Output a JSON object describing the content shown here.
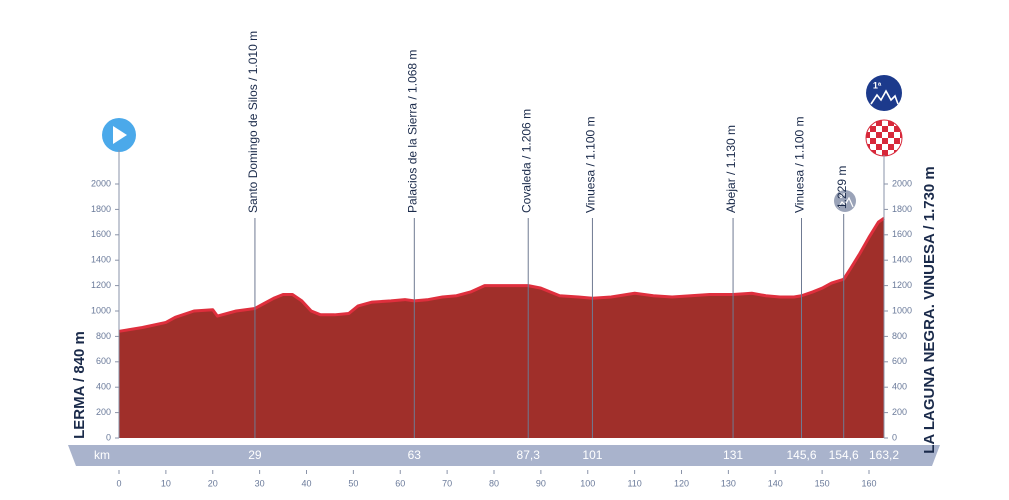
{
  "chart_data": {
    "type": "area",
    "x": [
      0,
      5,
      10,
      12,
      16,
      20,
      21,
      25,
      27,
      29,
      31,
      33,
      35,
      37,
      39,
      41,
      43,
      46,
      49,
      51,
      54,
      58,
      61,
      63,
      66,
      69,
      72,
      75,
      78,
      81,
      85,
      87.3,
      90,
      94,
      98,
      101,
      105,
      110,
      114,
      118,
      122,
      126,
      131,
      135,
      138,
      141,
      144,
      145.6,
      148,
      150,
      152,
      154.6,
      156,
      158,
      160,
      162,
      163.2
    ],
    "series": [
      {
        "color": "#a02f2a",
        "values": [
          840,
          870,
          910,
          950,
          1000,
          1010,
          960,
          1000,
          1010,
          1020,
          1060,
          1100,
          1130,
          1130,
          1080,
          1000,
          970,
          970,
          980,
          1040,
          1070,
          1080,
          1090,
          1080,
          1090,
          1110,
          1120,
          1150,
          1200,
          1200,
          1200,
          1200,
          1180,
          1120,
          1110,
          1100,
          1110,
          1140,
          1120,
          1110,
          1120,
          1130,
          1130,
          1140,
          1120,
          1110,
          1110,
          1120,
          1150,
          1180,
          1220,
          1250,
          1330,
          1450,
          1580,
          1700,
          1730
        ]
      }
    ],
    "xlim": [
      0,
      163.2
    ],
    "xticks": [
      0,
      10,
      20,
      30,
      40,
      50,
      60,
      70,
      80,
      90,
      100,
      110,
      120,
      130,
      140,
      150,
      160
    ],
    "ylim": [
      0,
      2000
    ],
    "yticks": [
      0,
      200,
      400,
      600,
      800,
      1000,
      1200,
      1400,
      1600,
      1800,
      2000
    ],
    "start": "LERMA / 840 m",
    "finish": "LA LAGUNA NEGRA. VINUESA / 1.730 m",
    "km_label": "km",
    "finish_category": "1ª",
    "climb_category": "3ª",
    "markers": [
      {
        "km": 29,
        "name": "Santo Domingo de Silos / 1.010 m"
      },
      {
        "km": 63,
        "name": "Palacios de la Sierra / 1.068 m"
      },
      {
        "km": {
          "value": 87.3,
          "label": "87,3"
        },
        "name": "Covaleda / 1.206 m"
      },
      {
        "km": 101,
        "name": "Vinuesa / 1.100 m"
      },
      {
        "km": 131,
        "name": "Abejar / 1.130 m"
      },
      {
        "km": {
          "value": 145.6,
          "label": "145,6"
        },
        "name": "Vinuesa / 1.100 m"
      },
      {
        "km": {
          "value": 154.6,
          "label": "154,6"
        },
        "name": "1.229 m"
      },
      {
        "km": {
          "value": 163.2,
          "label": "163,2"
        }
      }
    ]
  }
}
